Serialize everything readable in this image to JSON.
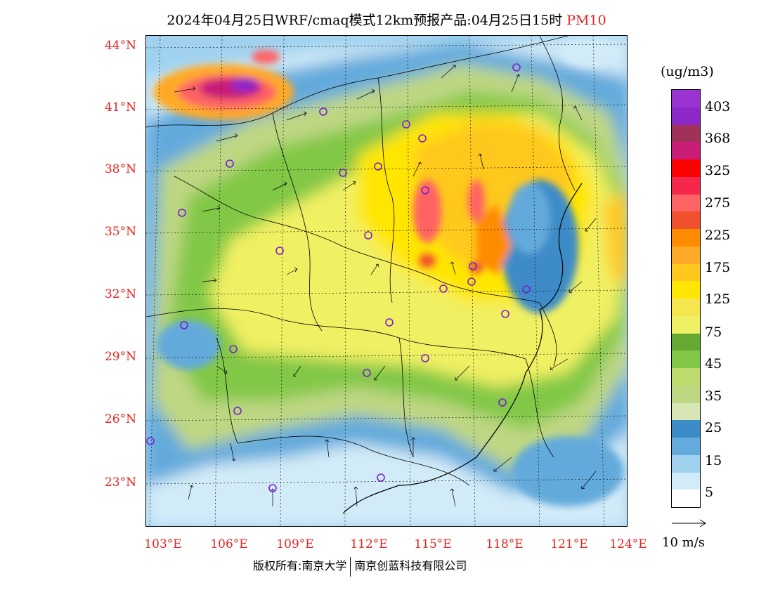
{
  "header": {
    "title": "2024年04月25日WRF/cmaq模式12km预报产品:04月25日15时",
    "pollutant": "PM10",
    "pollutant_color": "#e8231e"
  },
  "map": {
    "lat_labels": [
      "44°N",
      "41°N",
      "38°N",
      "35°N",
      "32°N",
      "29°N",
      "26°N",
      "23°N"
    ],
    "lon_labels": [
      "103°E",
      "106°E",
      "109°E",
      "112°E",
      "115°E",
      "118°E",
      "121°E",
      "124°E"
    ]
  },
  "colorbar": {
    "unit": "(ug/m3)",
    "colors_top_to_bottom": [
      "#9b32d2",
      "#8c28c8",
      "#a0325a",
      "#c81e78",
      "#ff0000",
      "#f5284b",
      "#ff6464",
      "#f0502d",
      "#ff8c00",
      "#ffaa28",
      "#ffc81e",
      "#ffe600",
      "#f5e650",
      "#f0f064",
      "#64aa32",
      "#82c846",
      "#bedc6e",
      "#bed782",
      "#d7e6b4",
      "#3c8cc8",
      "#64aadc",
      "#a0d2f0",
      "#d2ebf8",
      "#ffffff"
    ],
    "labels": [
      "403",
      "368",
      "325",
      "275",
      "225",
      "175",
      "125",
      "75",
      "45",
      "35",
      "25",
      "15",
      "5"
    ]
  },
  "vector_reference": {
    "label": "10 m/s"
  },
  "footer": {
    "copyright": "版权所有:南京大学",
    "company": "南京创蓝科技有限公司"
  }
}
